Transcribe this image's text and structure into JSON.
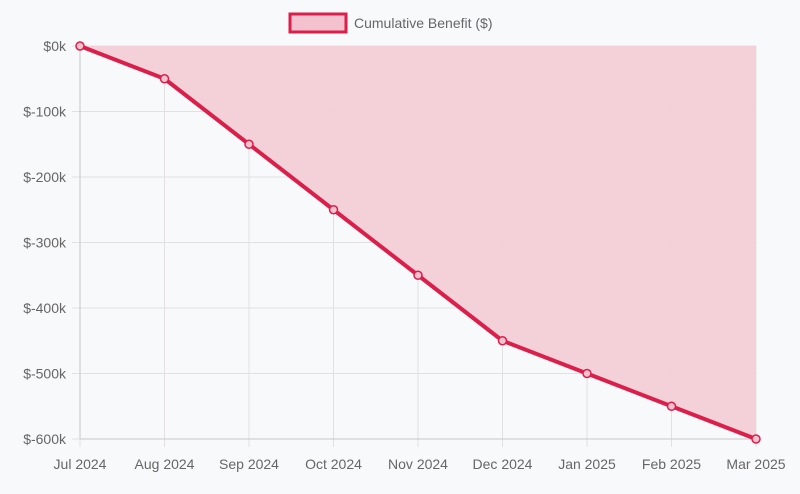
{
  "chart_data": {
    "type": "area",
    "title": "",
    "xlabel": "",
    "ylabel": "",
    "categories": [
      "Jul 2024",
      "Aug 2024",
      "Sep 2024",
      "Oct 2024",
      "Nov 2024",
      "Dec 2024",
      "Jan 2025",
      "Feb 2025",
      "Mar 2025"
    ],
    "series": [
      {
        "name": "Cumulative Benefit ($)",
        "values": [
          0,
          -50000,
          -150000,
          -250000,
          -350000,
          -450000,
          -500000,
          -550000,
          -600000
        ]
      }
    ],
    "ylim": [
      -600000,
      0
    ],
    "y_ticks": [
      0,
      -100000,
      -200000,
      -300000,
      -400000,
      -500000,
      -600000
    ],
    "y_tick_labels": [
      "$0k",
      "$-100k",
      "$-200k",
      "$-300k",
      "$-400k",
      "$-500k",
      "$-600k"
    ],
    "grid": true,
    "legend_position": "top-center",
    "fill_to": "top",
    "colors": {
      "line": "#dc1e4b",
      "fill": "#f3cdd6",
      "point_fill": "#f4c2cf",
      "grid": "#e1e1e1",
      "axis": "#c8c8c8",
      "text": "#666666"
    }
  }
}
